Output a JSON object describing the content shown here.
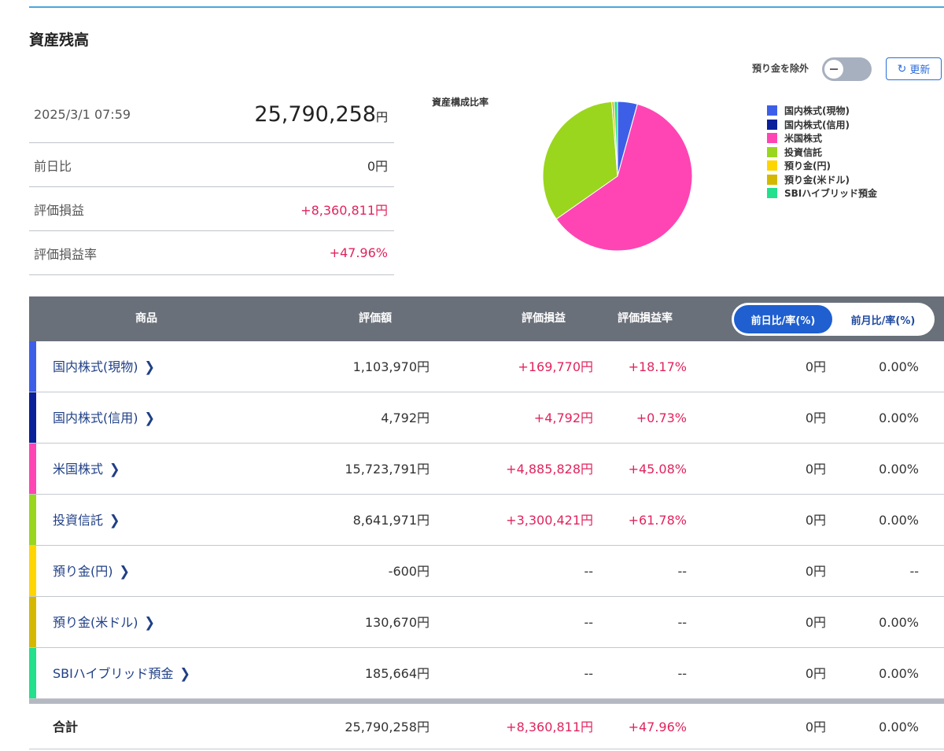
{
  "section_title": "資産残高",
  "controls": {
    "exclude_deposit_label": "預り金を除外",
    "refresh_label": "更新"
  },
  "summary": {
    "timestamp": "2025/3/1 07:59",
    "total_amount": "25,790,258",
    "yen": "円",
    "rows": [
      {
        "label": "前日比",
        "value": "0円"
      },
      {
        "label": "評価損益",
        "value": "+8,360,811円"
      },
      {
        "label": "評価損益率",
        "value": "+47.96%"
      }
    ]
  },
  "chart_data": {
    "type": "pie",
    "title": "資産構成比率",
    "labels": [
      "国内株式(現物)",
      "国内株式(信用)",
      "米国株式",
      "投資信託",
      "預り金(円)",
      "預り金(米ドル)",
      "SBIハイブリッド預金"
    ],
    "values": [
      1103970,
      4792,
      15723791,
      8641971,
      0,
      130670,
      185664
    ],
    "colors": [
      "#3d5fe8",
      "#0a1f9a",
      "#ff45b3",
      "#9ad61e",
      "#ffd500",
      "#d4b800",
      "#22e08c"
    ],
    "legend_position": "right"
  },
  "table": {
    "headers": {
      "product": "商品",
      "value": "評価額",
      "pl": "評価損益",
      "pl_rate": "評価損益率",
      "toggle_day": "前日比/率(%)",
      "toggle_month": "前月比/率(%)"
    },
    "rows": [
      {
        "name": "国内株式(現物)",
        "value": "1,103,970円",
        "pl": "+169,770円",
        "rate": "+18.17%",
        "day": "0円",
        "day_rate": "0.00%",
        "color": "#3d5fe8"
      },
      {
        "name": "国内株式(信用)",
        "value": "4,792円",
        "pl": "+4,792円",
        "rate": "+0.73%",
        "day": "0円",
        "day_rate": "0.00%",
        "color": "#0a1f9a"
      },
      {
        "name": "米国株式",
        "value": "15,723,791円",
        "pl": "+4,885,828円",
        "rate": "+45.08%",
        "day": "0円",
        "day_rate": "0.00%",
        "color": "#ff45b3"
      },
      {
        "name": "投資信託",
        "value": "8,641,971円",
        "pl": "+3,300,421円",
        "rate": "+61.78%",
        "day": "0円",
        "day_rate": "0.00%",
        "color": "#9ad61e"
      },
      {
        "name": "預り金(円)",
        "value": "-600円",
        "pl": "--",
        "rate": "--",
        "day": "0円",
        "day_rate": "--",
        "color": "#ffd500"
      },
      {
        "name": "預り金(米ドル)",
        "value": "130,670円",
        "pl": "--",
        "rate": "--",
        "day": "0円",
        "day_rate": "0.00%",
        "color": "#d4b800"
      },
      {
        "name": "SBIハイブリッド預金",
        "value": "185,664円",
        "pl": "--",
        "rate": "--",
        "day": "0円",
        "day_rate": "0.00%",
        "color": "#22e08c"
      }
    ],
    "total": {
      "label": "合計",
      "value": "25,790,258円",
      "pl": "+8,360,811円",
      "rate": "+47.96%",
      "day": "0円",
      "day_rate": "0.00%"
    }
  }
}
